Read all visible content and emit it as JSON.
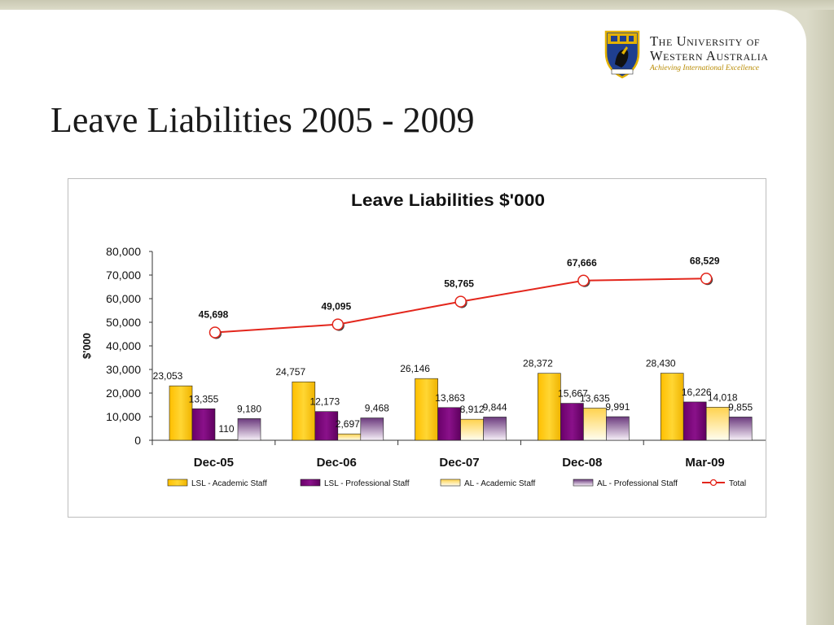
{
  "slide": {
    "title": "Leave Liabilities 2005 - 2009"
  },
  "logo": {
    "line1": "The University of",
    "line2": "Western Australia",
    "motto": "Achieving International Excellence",
    "colors": {
      "text": "#1a1a1a",
      "motto": "#b88a00",
      "shield": "#1f3f8f",
      "gold": "#e3b100"
    }
  },
  "chart_data": {
    "type": "bar",
    "title": "Leave Liabilities $'000",
    "xlabel": "",
    "ylabel": "$'000",
    "ylim": [
      0,
      80000
    ],
    "yticks": [
      0,
      10000,
      20000,
      30000,
      40000,
      50000,
      60000,
      70000,
      80000
    ],
    "ytick_labels": [
      "0",
      "10,000",
      "20,000",
      "30,000",
      "40,000",
      "50,000",
      "60,000",
      "70,000",
      "80,000"
    ],
    "grid": false,
    "legend": "bottom",
    "categories": [
      "Dec-05",
      "Dec-06",
      "Dec-07",
      "Dec-08",
      "Mar-09"
    ],
    "series": [
      {
        "name": "LSL - Academic Staff",
        "kind": "bar",
        "color": "#ffcc00",
        "values": [
          23053,
          24757,
          26146,
          28372,
          28430
        ],
        "labels": [
          "23,053",
          "24,757",
          "26,146",
          "28,372",
          "28,430"
        ]
      },
      {
        "name": "LSL - Professional Staff",
        "kind": "bar",
        "color": "#7a0a7a",
        "values": [
          13355,
          12173,
          13863,
          15667,
          16226
        ],
        "labels": [
          "13,355",
          "12,173",
          "13,863",
          "15,667",
          "16,226"
        ]
      },
      {
        "name": "AL - Academic Staff",
        "kind": "bar",
        "color": "#ffd966",
        "values": [
          110,
          2697,
          8912,
          13635,
          14018
        ],
        "labels": [
          "110",
          "2,697",
          "8,912",
          "13,635",
          "14,018"
        ]
      },
      {
        "name": "AL - Professional Staff",
        "kind": "bar",
        "color": "#7a4a8a",
        "values": [
          9180,
          9468,
          9844,
          9991,
          9855
        ],
        "labels": [
          "9,180",
          "9,468",
          "9,844",
          "9,991",
          "9,855"
        ]
      },
      {
        "name": "Total",
        "kind": "line",
        "color": "#e3261c",
        "values": [
          45698,
          49095,
          58765,
          67666,
          68529
        ],
        "labels": [
          "45,698",
          "49,095",
          "58,765",
          "67,666",
          "68,529"
        ]
      }
    ]
  }
}
